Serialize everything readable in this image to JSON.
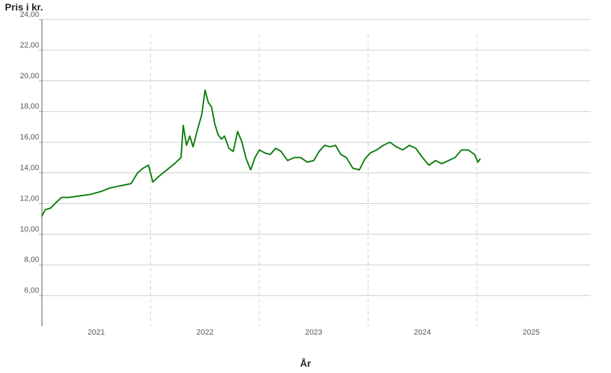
{
  "chart_data": {
    "type": "line",
    "ylabel": "Pris i kr.",
    "xlabel": "År",
    "ylim": [
      4,
      24
    ],
    "xlim": [
      2020.5,
      2025.6
    ],
    "y_ticks": [
      "24,00",
      "22,00",
      "20,00",
      "18,00",
      "16,00",
      "14,00",
      "12,00",
      "10,00",
      "8,00",
      "6,00"
    ],
    "x_ticks": [
      "2021",
      "2022",
      "2023",
      "2024",
      "2025"
    ],
    "grid": "horizontal solid, vertical dashed year separators",
    "line_color": "#0a7d0a",
    "series": [
      {
        "points": [
          [
            2020.5,
            11.2
          ],
          [
            2020.53,
            11.6
          ],
          [
            2020.58,
            11.7
          ],
          [
            2020.62,
            12.0
          ],
          [
            2020.68,
            12.4
          ],
          [
            2020.75,
            12.4
          ],
          [
            2020.85,
            12.5
          ],
          [
            2020.95,
            12.6
          ],
          [
            2021.05,
            12.8
          ],
          [
            2021.12,
            13.0
          ],
          [
            2021.18,
            13.1
          ],
          [
            2021.25,
            13.2
          ],
          [
            2021.32,
            13.3
          ],
          [
            2021.38,
            14.0
          ],
          [
            2021.43,
            14.3
          ],
          [
            2021.48,
            14.5
          ],
          [
            2021.52,
            13.4
          ],
          [
            2021.58,
            13.8
          ],
          [
            2021.65,
            14.2
          ],
          [
            2021.72,
            14.6
          ],
          [
            2021.78,
            15.0
          ],
          [
            2021.8,
            17.1
          ],
          [
            2021.83,
            15.8
          ],
          [
            2021.86,
            16.4
          ],
          [
            2021.89,
            15.7
          ],
          [
            2021.93,
            16.8
          ],
          [
            2021.97,
            17.8
          ],
          [
            2022.0,
            19.4
          ],
          [
            2022.03,
            18.6
          ],
          [
            2022.06,
            18.3
          ],
          [
            2022.09,
            17.2
          ],
          [
            2022.12,
            16.5
          ],
          [
            2022.15,
            16.2
          ],
          [
            2022.18,
            16.4
          ],
          [
            2022.22,
            15.6
          ],
          [
            2022.26,
            15.4
          ],
          [
            2022.3,
            16.7
          ],
          [
            2022.34,
            16.0
          ],
          [
            2022.38,
            14.9
          ],
          [
            2022.42,
            14.2
          ],
          [
            2022.46,
            15.0
          ],
          [
            2022.5,
            15.5
          ],
          [
            2022.55,
            15.3
          ],
          [
            2022.6,
            15.2
          ],
          [
            2022.65,
            15.6
          ],
          [
            2022.7,
            15.4
          ],
          [
            2022.76,
            14.8
          ],
          [
            2022.82,
            15.0
          ],
          [
            2022.88,
            15.0
          ],
          [
            2022.94,
            14.7
          ],
          [
            2023.0,
            14.8
          ],
          [
            2023.05,
            15.4
          ],
          [
            2023.1,
            15.8
          ],
          [
            2023.15,
            15.7
          ],
          [
            2023.2,
            15.8
          ],
          [
            2023.25,
            15.2
          ],
          [
            2023.3,
            15.0
          ],
          [
            2023.36,
            14.3
          ],
          [
            2023.42,
            14.2
          ],
          [
            2023.47,
            14.9
          ],
          [
            2023.52,
            15.3
          ],
          [
            2023.58,
            15.5
          ],
          [
            2023.64,
            15.8
          ],
          [
            2023.7,
            16.0
          ],
          [
            2023.76,
            15.7
          ],
          [
            2023.82,
            15.5
          ],
          [
            2023.88,
            15.8
          ],
          [
            2023.94,
            15.6
          ],
          [
            2024.0,
            15.0
          ],
          [
            2024.06,
            14.5
          ],
          [
            2024.12,
            14.8
          ],
          [
            2024.18,
            14.6
          ],
          [
            2024.24,
            14.8
          ],
          [
            2024.3,
            15.0
          ],
          [
            2024.36,
            15.5
          ],
          [
            2024.42,
            15.5
          ],
          [
            2024.48,
            15.2
          ],
          [
            2024.51,
            14.7
          ],
          [
            2024.53,
            14.9
          ]
        ]
      }
    ]
  }
}
